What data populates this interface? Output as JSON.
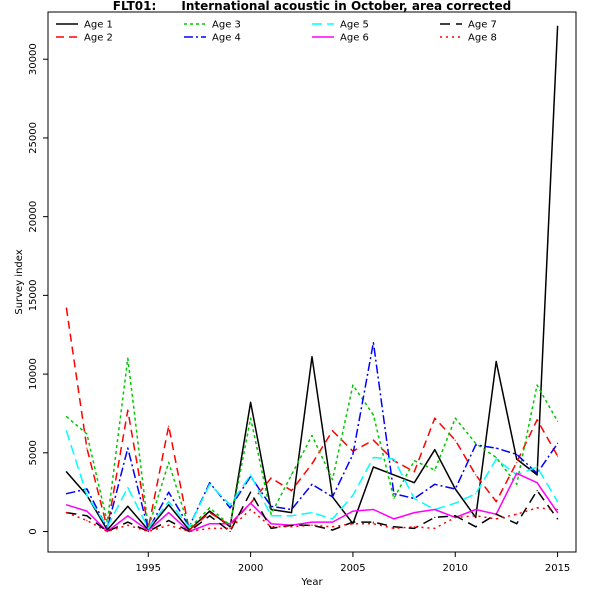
{
  "chart_data": {
    "type": "line",
    "title": "FLT01:      International acoustic in October, area corrected",
    "xlabel": "Year",
    "ylabel": "Survey index",
    "xlim": [
      1990.1,
      2015.9
    ],
    "ylim": [
      -1300,
      33000
    ],
    "x_ticks": [
      1995,
      2000,
      2005,
      2010,
      2015
    ],
    "y_ticks": [
      0,
      5000,
      10000,
      15000,
      20000,
      25000,
      30000
    ],
    "grid": false,
    "legend_position": "top-left",
    "x": [
      1991,
      1992,
      1993,
      1994,
      1995,
      1996,
      1997,
      1998,
      1999,
      2000,
      2001,
      2002,
      2003,
      2004,
      2005,
      2006,
      2007,
      2008,
      2009,
      2010,
      2011,
      2012,
      2013,
      2014,
      2015
    ],
    "series": [
      {
        "name": "Age 1",
        "color": "#000000",
        "dash": "",
        "values": [
          3800,
          2300,
          100,
          1600,
          100,
          1700,
          100,
          1300,
          300,
          8200,
          1400,
          1200,
          11100,
          2200,
          500,
          4100,
          3600,
          3100,
          5200,
          2700,
          900,
          10800,
          4600,
          3600,
          32100
        ]
      },
      {
        "name": "Age 2",
        "color": "#ff0000",
        "dash": "8,5",
        "values": [
          14200,
          5300,
          200,
          7700,
          200,
          6700,
          100,
          1200,
          400,
          1800,
          3400,
          2600,
          4300,
          6400,
          5100,
          5800,
          4500,
          3800,
          7200,
          5800,
          3600,
          1900,
          4400,
          7100,
          4800
        ]
      },
      {
        "name": "Age 3",
        "color": "#00c800",
        "dash": "3,3",
        "values": [
          7300,
          6200,
          600,
          11000,
          200,
          4400,
          200,
          1500,
          400,
          7200,
          1100,
          3600,
          6100,
          3300,
          9300,
          7400,
          2100,
          4500,
          3900,
          7200,
          5600,
          4700,
          3000,
          9300,
          7000
        ]
      },
      {
        "name": "Age 4",
        "color": "#0000ff",
        "dash": "9,3,2,3",
        "values": [
          2400,
          2700,
          200,
          5300,
          100,
          2500,
          300,
          3100,
          1500,
          3500,
          1600,
          1400,
          3000,
          2200,
          4900,
          12000,
          2400,
          2100,
          3000,
          2700,
          5500,
          5300,
          4900,
          3700,
          5600
        ]
      },
      {
        "name": "Age 5",
        "color": "#00ffff",
        "dash": "10,5",
        "values": [
          6400,
          2300,
          300,
          2800,
          200,
          1900,
          300,
          3000,
          1700,
          3600,
          1000,
          1000,
          1200,
          800,
          2300,
          4700,
          4600,
          2100,
          1400,
          1800,
          2400,
          4600,
          3600,
          4100,
          1900
        ]
      },
      {
        "name": "Age 6",
        "color": "#ff00ff",
        "dash": "",
        "values": [
          1700,
          1300,
          0,
          1000,
          50,
          1200,
          0,
          500,
          500,
          1800,
          500,
          400,
          600,
          600,
          1300,
          1400,
          800,
          1200,
          1400,
          900,
          1400,
          1100,
          3700,
          3100,
          1200
        ]
      },
      {
        "name": "Age 7",
        "color": "#000000",
        "dash": "10,6",
        "values": [
          1200,
          1000,
          0,
          600,
          0,
          700,
          0,
          1000,
          0,
          2500,
          200,
          400,
          400,
          100,
          600,
          600,
          300,
          200,
          900,
          1000,
          300,
          1100,
          500,
          2600,
          800
        ]
      },
      {
        "name": "Age 8",
        "color": "#ff0000",
        "dash": "2,4",
        "values": [
          1200,
          700,
          0,
          400,
          0,
          400,
          0,
          200,
          200,
          1400,
          300,
          300,
          400,
          300,
          500,
          500,
          200,
          300,
          200,
          900,
          1000,
          800,
          1100,
          1500,
          1400
        ]
      }
    ]
  }
}
